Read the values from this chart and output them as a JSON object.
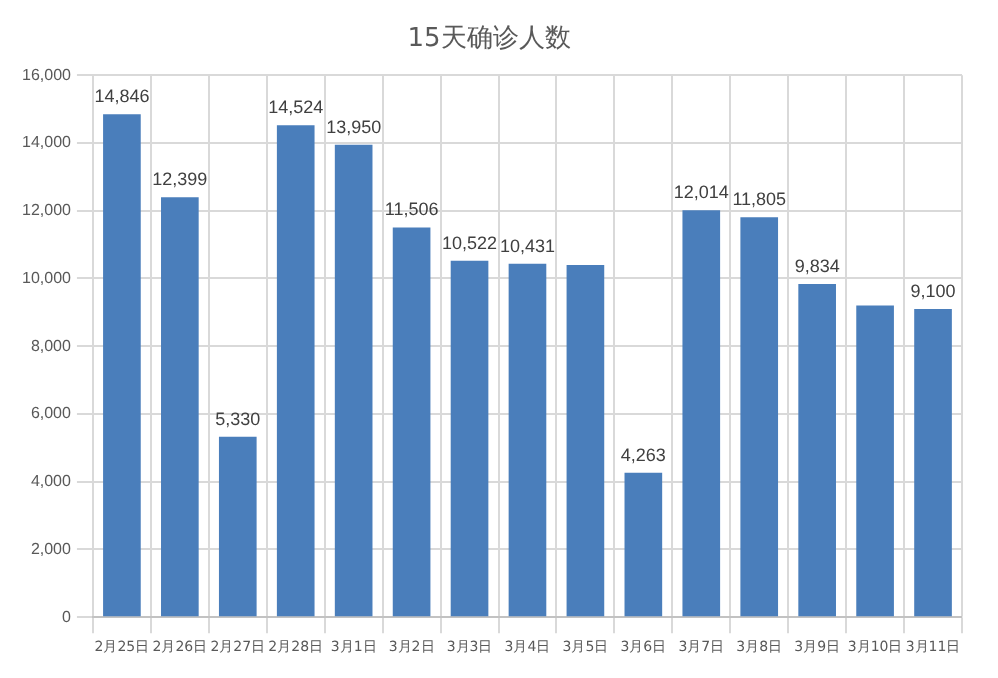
{
  "chart_data": {
    "type": "bar",
    "title": "15天确诊人数",
    "categories": [
      "2月25日",
      "2月26日",
      "2月27日",
      "2月28日",
      "3月1日",
      "3月2日",
      "3月3日",
      "3月4日",
      "3月5日",
      "3月6日",
      "3月7日",
      "3月8日",
      "3月9日",
      "3月10日",
      "3月11日"
    ],
    "values": [
      14846,
      12399,
      5330,
      14524,
      13950,
      11506,
      10522,
      10431,
      10400,
      4263,
      12014,
      11805,
      9834,
      9200,
      9100
    ],
    "value_labels": [
      "14,846",
      "12,399",
      "5,330",
      "14,524",
      "13,950",
      "11,506",
      "10,522",
      "10,431",
      null,
      "4,263",
      "12,014",
      "11,805",
      "9,834",
      null,
      "9,100"
    ],
    "color": "#4a7ebb",
    "ylim": [
      0,
      16000
    ],
    "yticks": [
      0,
      {
        "value": 2000,
        "label": "2,000"
      },
      {
        "value": 4000,
        "label": "4,000"
      },
      {
        "value": 6000,
        "label": "6,000"
      },
      {
        "value": 8000,
        "label": "8,000"
      },
      {
        "value": 10000,
        "label": "10,000"
      },
      {
        "value": 12000,
        "label": "12,000"
      },
      {
        "value": 14000,
        "label": "14,000"
      },
      {
        "value": 16000,
        "label": "16,000"
      }
    ],
    "grid": true
  }
}
